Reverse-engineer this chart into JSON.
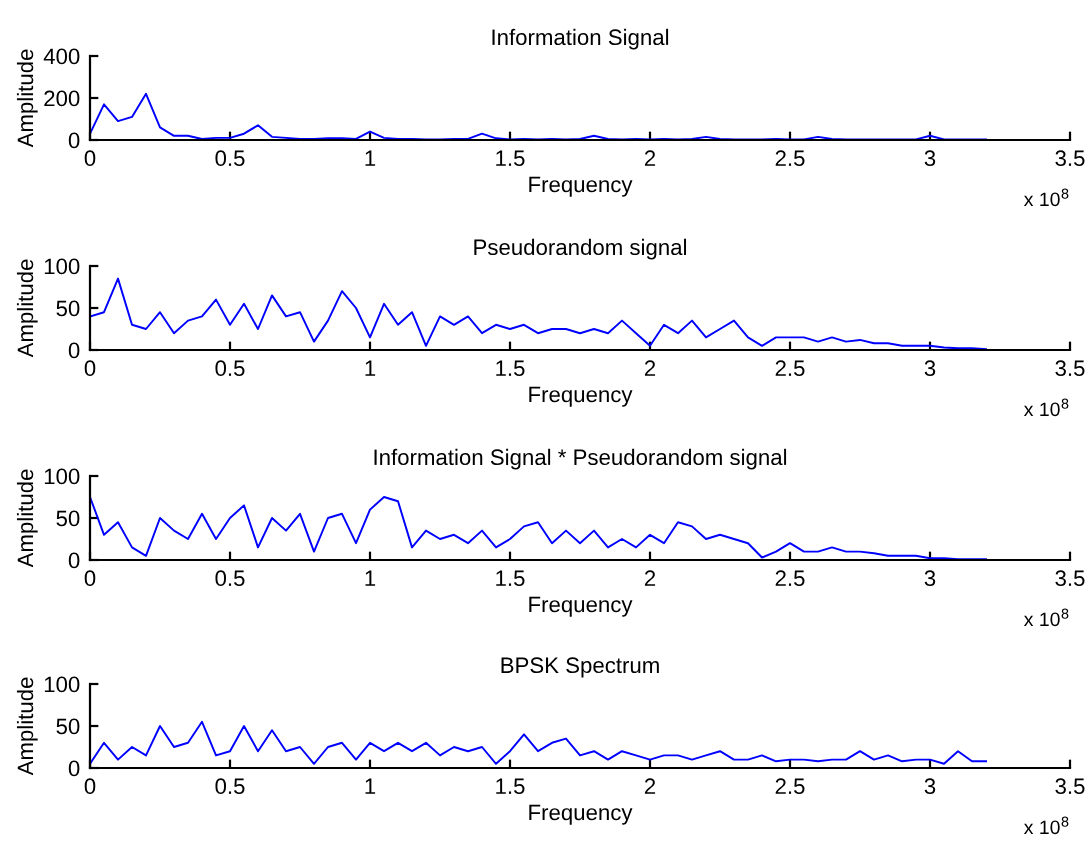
{
  "chart_data": [
    {
      "type": "line",
      "title": "Information Signal",
      "xlabel": "Frequency",
      "ylabel": "Amplitude",
      "color": "#0000ff",
      "xlim": [
        0,
        3.5
      ],
      "xticks": [
        0,
        0.5,
        1,
        1.5,
        2,
        2.5,
        3,
        3.5
      ],
      "ylim": [
        0,
        400
      ],
      "yticks": [
        0,
        200,
        400
      ],
      "annotations": [
        "x 10$^{8}$"
      ],
      "x": [
        0,
        0.05,
        0.1,
        0.15,
        0.2,
        0.25,
        0.3,
        0.35,
        0.4,
        0.45,
        0.5,
        0.55,
        0.6,
        0.65,
        0.7,
        0.75,
        0.8,
        0.85,
        0.9,
        0.95,
        1.0,
        1.05,
        1.1,
        1.15,
        1.2,
        1.25,
        1.3,
        1.35,
        1.4,
        1.45,
        1.5,
        1.55,
        1.6,
        1.65,
        1.7,
        1.75,
        1.8,
        1.85,
        1.9,
        1.95,
        2.0,
        2.05,
        2.1,
        2.15,
        2.2,
        2.25,
        2.3,
        2.35,
        2.4,
        2.45,
        2.5,
        2.55,
        2.6,
        2.65,
        2.7,
        2.75,
        2.8,
        2.85,
        2.9,
        2.95,
        3.0,
        3.05,
        3.1,
        3.15,
        3.2
      ],
      "values": [
        30,
        170,
        90,
        110,
        220,
        60,
        20,
        20,
        5,
        10,
        10,
        30,
        70,
        15,
        10,
        5,
        5,
        8,
        8,
        5,
        40,
        10,
        5,
        5,
        3,
        3,
        5,
        5,
        30,
        8,
        3,
        5,
        3,
        5,
        3,
        5,
        20,
        5,
        3,
        5,
        3,
        5,
        3,
        5,
        15,
        5,
        3,
        3,
        3,
        5,
        3,
        3,
        15,
        5,
        3,
        3,
        3,
        3,
        3,
        3,
        20,
        3,
        3,
        3,
        3
      ]
    },
    {
      "type": "line",
      "title": "Pseudorandom signal",
      "xlabel": "Frequency",
      "ylabel": "Amplitude",
      "color": "#0000ff",
      "xlim": [
        0,
        3.5
      ],
      "xticks": [
        0,
        0.5,
        1,
        1.5,
        2,
        2.5,
        3,
        3.5
      ],
      "ylim": [
        0,
        100
      ],
      "yticks": [
        0,
        50,
        100
      ],
      "annotations": [
        "x 10$^{8}$"
      ],
      "x": [
        0,
        0.05,
        0.1,
        0.15,
        0.2,
        0.25,
        0.3,
        0.35,
        0.4,
        0.45,
        0.5,
        0.55,
        0.6,
        0.65,
        0.7,
        0.75,
        0.8,
        0.85,
        0.9,
        0.95,
        1.0,
        1.05,
        1.1,
        1.15,
        1.2,
        1.25,
        1.3,
        1.35,
        1.4,
        1.45,
        1.5,
        1.55,
        1.6,
        1.65,
        1.7,
        1.75,
        1.8,
        1.85,
        1.9,
        1.95,
        2.0,
        2.05,
        2.1,
        2.15,
        2.2,
        2.25,
        2.3,
        2.35,
        2.4,
        2.45,
        2.5,
        2.55,
        2.6,
        2.65,
        2.7,
        2.75,
        2.8,
        2.85,
        2.9,
        2.95,
        3.0,
        3.05,
        3.1,
        3.15,
        3.2
      ],
      "values": [
        40,
        45,
        85,
        30,
        25,
        45,
        20,
        35,
        40,
        60,
        30,
        55,
        25,
        65,
        40,
        45,
        10,
        35,
        70,
        50,
        15,
        55,
        30,
        45,
        5,
        40,
        30,
        40,
        20,
        30,
        25,
        30,
        20,
        25,
        25,
        20,
        25,
        20,
        35,
        20,
        5,
        30,
        20,
        35,
        15,
        25,
        35,
        15,
        5,
        15,
        15,
        15,
        10,
        15,
        10,
        12,
        8,
        8,
        5,
        5,
        5,
        3,
        2,
        2,
        1
      ]
    },
    {
      "type": "line",
      "title": "Information Signal * Pseudorandom signal",
      "xlabel": "Frequency",
      "ylabel": "Amplitude",
      "color": "#0000ff",
      "xlim": [
        0,
        3.5
      ],
      "xticks": [
        0,
        0.5,
        1,
        1.5,
        2,
        2.5,
        3,
        3.5
      ],
      "ylim": [
        0,
        100
      ],
      "yticks": [
        0,
        50,
        100
      ],
      "annotations": [
        "x 10$^{8}$"
      ],
      "x": [
        0,
        0.05,
        0.1,
        0.15,
        0.2,
        0.25,
        0.3,
        0.35,
        0.4,
        0.45,
        0.5,
        0.55,
        0.6,
        0.65,
        0.7,
        0.75,
        0.8,
        0.85,
        0.9,
        0.95,
        1.0,
        1.05,
        1.1,
        1.15,
        1.2,
        1.25,
        1.3,
        1.35,
        1.4,
        1.45,
        1.5,
        1.55,
        1.6,
        1.65,
        1.7,
        1.75,
        1.8,
        1.85,
        1.9,
        1.95,
        2.0,
        2.05,
        2.1,
        2.15,
        2.2,
        2.25,
        2.3,
        2.35,
        2.4,
        2.45,
        2.5,
        2.55,
        2.6,
        2.65,
        2.7,
        2.75,
        2.8,
        2.85,
        2.9,
        2.95,
        3.0,
        3.05,
        3.1,
        3.15,
        3.2
      ],
      "values": [
        75,
        30,
        45,
        15,
        5,
        50,
        35,
        25,
        55,
        25,
        50,
        65,
        15,
        50,
        35,
        55,
        10,
        50,
        55,
        20,
        60,
        75,
        70,
        15,
        35,
        25,
        30,
        20,
        35,
        15,
        25,
        40,
        45,
        20,
        35,
        20,
        35,
        15,
        25,
        15,
        30,
        20,
        45,
        40,
        25,
        30,
        25,
        20,
        3,
        10,
        20,
        10,
        10,
        15,
        10,
        10,
        8,
        5,
        5,
        5,
        2,
        2,
        1,
        1,
        1
      ]
    },
    {
      "type": "line",
      "title": "BPSK Spectrum",
      "xlabel": "Frequency",
      "ylabel": "Amplitude",
      "color": "#0000ff",
      "xlim": [
        0,
        3.5
      ],
      "xticks": [
        0,
        0.5,
        1,
        1.5,
        2,
        2.5,
        3,
        3.5
      ],
      "ylim": [
        0,
        100
      ],
      "yticks": [
        0,
        50,
        100
      ],
      "annotations": [
        "x 10$^{8}$"
      ],
      "x": [
        0,
        0.05,
        0.1,
        0.15,
        0.2,
        0.25,
        0.3,
        0.35,
        0.4,
        0.45,
        0.5,
        0.55,
        0.6,
        0.65,
        0.7,
        0.75,
        0.8,
        0.85,
        0.9,
        0.95,
        1.0,
        1.05,
        1.1,
        1.15,
        1.2,
        1.25,
        1.3,
        1.35,
        1.4,
        1.45,
        1.5,
        1.55,
        1.6,
        1.65,
        1.7,
        1.75,
        1.8,
        1.85,
        1.9,
        1.95,
        2.0,
        2.05,
        2.1,
        2.15,
        2.2,
        2.25,
        2.3,
        2.35,
        2.4,
        2.45,
        2.5,
        2.55,
        2.6,
        2.65,
        2.7,
        2.75,
        2.8,
        2.85,
        2.9,
        2.95,
        3.0,
        3.05,
        3.1,
        3.15,
        3.2
      ],
      "values": [
        5,
        30,
        10,
        25,
        15,
        50,
        25,
        30,
        55,
        15,
        20,
        50,
        20,
        45,
        20,
        25,
        5,
        25,
        30,
        10,
        30,
        20,
        30,
        20,
        30,
        15,
        25,
        20,
        25,
        5,
        20,
        40,
        20,
        30,
        35,
        15,
        20,
        10,
        20,
        15,
        10,
        15,
        15,
        10,
        15,
        20,
        10,
        10,
        15,
        8,
        10,
        10,
        8,
        10,
        10,
        20,
        10,
        15,
        8,
        10,
        10,
        5,
        20,
        8,
        8
      ]
    }
  ]
}
